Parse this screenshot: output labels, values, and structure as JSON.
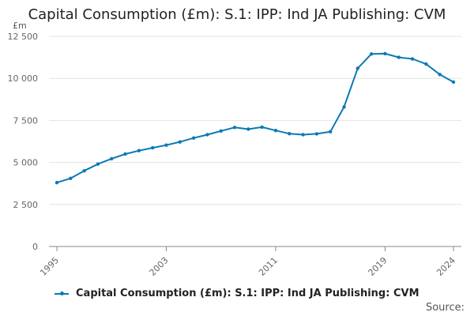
{
  "title": "Capital Consumption (£m): S.1: IPP: Ind JA Publishing: CVM",
  "colors": {
    "series": "#0a7ab4",
    "grid": "#e3e3e3",
    "axis": "#888888",
    "text": "#666666"
  },
  "chart_data": {
    "type": "line",
    "ylabel": "£m",
    "ylim": [
      0,
      12500
    ],
    "yticks": [
      0,
      2500,
      5000,
      7500,
      10000,
      12500
    ],
    "ytick_labels": [
      "0",
      "2 500",
      "5 000",
      "7 500",
      "10 000",
      "12 500"
    ],
    "xlim": [
      1995,
      2024
    ],
    "xticks": [
      1995,
      2003,
      2011,
      2019,
      2024
    ],
    "xtick_labels": [
      "1995",
      "2003",
      "2011",
      "2019",
      "2024"
    ],
    "grid": true,
    "legend_position": "bottom",
    "series": [
      {
        "name": "Capital Consumption (£m): S.1: IPP: Ind JA Publishing: CVM",
        "x": [
          1995,
          1996,
          1997,
          1998,
          1999,
          2000,
          2001,
          2002,
          2003,
          2004,
          2005,
          2006,
          2007,
          2008,
          2009,
          2010,
          2011,
          2012,
          2013,
          2014,
          2015,
          2016,
          2017,
          2018,
          2019,
          2020,
          2021,
          2022,
          2023,
          2024
        ],
        "y": [
          3800,
          4050,
          4500,
          4900,
          5220,
          5500,
          5700,
          5870,
          6030,
          6220,
          6450,
          6650,
          6870,
          7080,
          6980,
          7100,
          6900,
          6710,
          6650,
          6700,
          6830,
          8300,
          10600,
          11450,
          11470,
          11250,
          11160,
          10850,
          10230,
          9780
        ]
      }
    ]
  },
  "legend": {
    "label": "Capital Consumption (£m): S.1: IPP: Ind JA Publishing: CVM"
  },
  "source_label": "Source:"
}
